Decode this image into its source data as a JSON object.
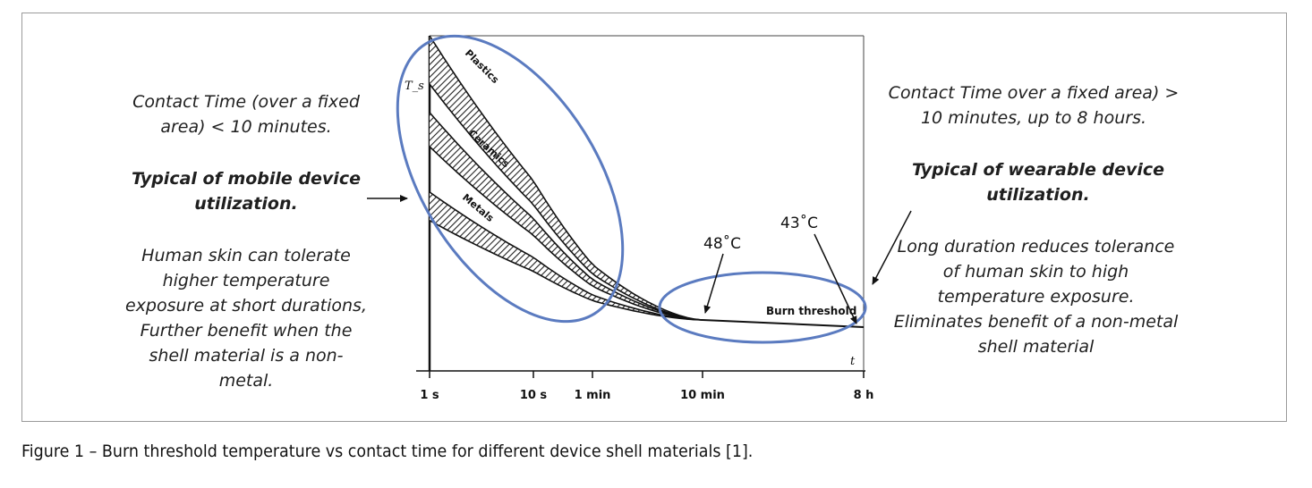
{
  "caption": "Figure 1 – Burn threshold temperature vs contact time for different device shell materials [1].",
  "left_notes": {
    "contact": [
      "Contact Time (over a fixed",
      "area) < 10 minutes."
    ],
    "typical": [
      "Typical of mobile device",
      "utilization."
    ],
    "body": [
      "Human skin can tolerate",
      "higher temperature",
      "exposure at short durations,",
      "Further benefit when the",
      "shell material is a non-",
      "metal."
    ]
  },
  "right_notes": {
    "contact": [
      "Contact Time over a fixed area) >",
      "10 minutes, up to 8 hours."
    ],
    "typical": [
      "Typical of wearable device",
      "utilization."
    ],
    "body": [
      "Long duration reduces tolerance",
      "of human skin to high",
      "temperature exposure.",
      "Eliminates benefit of a non-metal",
      "shell material"
    ]
  },
  "chart_data": {
    "type": "area",
    "title": "",
    "xlabel": "t",
    "ylabel": "T_s",
    "x_scale": "log",
    "x_ticks": [
      "1 s",
      "10 s",
      "1 min",
      "10 min",
      "8 h"
    ],
    "x_tick_seconds": [
      1,
      10,
      60,
      600,
      28800
    ],
    "bands": [
      {
        "name": "Plastics",
        "upper": [
          [
            1,
            1.0
          ],
          [
            600,
            0.0
          ]
        ],
        "lower": [
          [
            1,
            0.83
          ],
          [
            600,
            0.0
          ]
        ]
      },
      {
        "name": "Ceramics",
        "upper": [
          [
            1,
            0.73
          ],
          [
            600,
            0.0
          ]
        ],
        "lower": [
          [
            1,
            0.61
          ],
          [
            600,
            0.0
          ]
        ]
      },
      {
        "name": "Metals",
        "upper": [
          [
            1,
            0.45
          ],
          [
            600,
            0.0
          ]
        ],
        "lower": [
          [
            1,
            0.35
          ],
          [
            600,
            0.0
          ]
        ]
      }
    ],
    "burn_threshold": {
      "label": "Burn threshold",
      "points": [
        [
          600,
          0.0
        ],
        [
          28800,
          -0.025
        ]
      ]
    },
    "annotations": [
      {
        "label": "48˚C",
        "at_seconds": 600
      },
      {
        "label": "43˚C",
        "at_seconds": 28800
      }
    ],
    "colors": {
      "ellipse": "#5b7bc0",
      "line": "#111111"
    }
  }
}
